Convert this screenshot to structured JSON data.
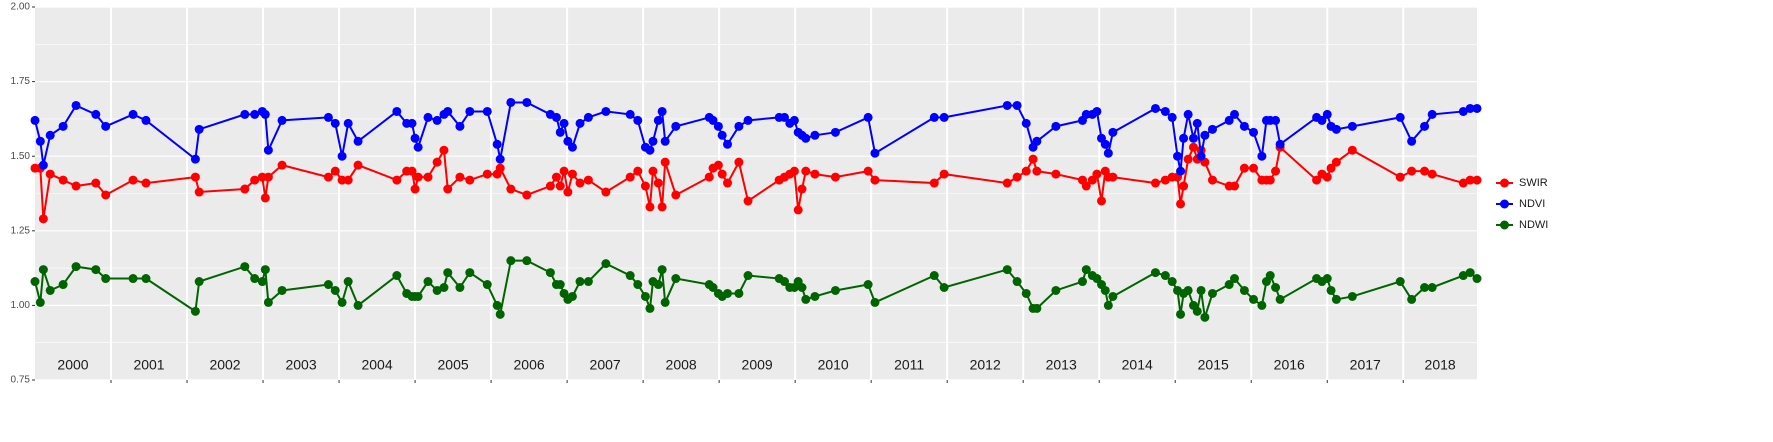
{
  "chart_data": {
    "type": "line",
    "x": [
      2000.0,
      2000.07,
      2000.11,
      2000.2,
      2000.37,
      2000.54,
      2000.8,
      2000.93,
      2001.29,
      2001.46,
      2002.11,
      2002.16,
      2002.76,
      2002.89,
      2002.99,
      2003.03,
      2003.07,
      2003.25,
      2003.86,
      2003.95,
      2004.04,
      2004.12,
      2004.25,
      2004.76,
      2004.89,
      2004.96,
      2005.0,
      2005.04,
      2005.17,
      2005.29,
      2005.38,
      2005.43,
      2005.59,
      2005.72,
      2005.95,
      2006.08,
      2006.12,
      2006.26,
      2006.47,
      2006.78,
      2006.86,
      2006.91,
      2006.96,
      2007.01,
      2007.07,
      2007.17,
      2007.28,
      2007.51,
      2007.83,
      2007.93,
      2008.03,
      2008.09,
      2008.13,
      2008.2,
      2008.25,
      2008.29,
      2008.43,
      2008.87,
      2008.92,
      2008.99,
      2009.04,
      2009.11,
      2009.26,
      2009.38,
      2009.79,
      2009.86,
      2009.93,
      2009.99,
      2010.04,
      2010.09,
      2010.14,
      2010.26,
      2010.53,
      2010.96,
      2011.05,
      2011.83,
      2011.96,
      2012.79,
      2012.92,
      2013.04,
      2013.13,
      2013.18,
      2013.43,
      2013.78,
      2013.83,
      2013.91,
      2013.97,
      2014.03,
      2014.08,
      2014.12,
      2014.18,
      2014.74,
      2014.87,
      2014.96,
      2015.03,
      2015.07,
      2015.11,
      2015.17,
      2015.24,
      2015.29,
      2015.34,
      2015.39,
      2015.49,
      2015.71,
      2015.78,
      2015.91,
      2016.03,
      2016.14,
      2016.2,
      2016.25,
      2016.32,
      2016.38,
      2016.86,
      2016.93,
      2017.0,
      2017.05,
      2017.12,
      2017.33,
      2017.96,
      2018.11,
      2018.28,
      2018.38,
      2018.79,
      2018.88,
      2018.97
    ],
    "series": [
      {
        "name": "SWIR",
        "color": "#ff0000",
        "values": [
          1.46,
          1.46,
          1.29,
          1.44,
          1.42,
          1.4,
          1.41,
          1.37,
          1.42,
          1.41,
          1.43,
          1.38,
          1.39,
          1.42,
          1.43,
          1.36,
          1.43,
          1.47,
          1.43,
          1.45,
          1.42,
          1.42,
          1.47,
          1.42,
          1.45,
          1.45,
          1.39,
          1.43,
          1.43,
          1.48,
          1.52,
          1.39,
          1.43,
          1.42,
          1.44,
          1.44,
          1.46,
          1.39,
          1.37,
          1.4,
          1.43,
          1.4,
          1.45,
          1.38,
          1.44,
          1.41,
          1.42,
          1.38,
          1.43,
          1.45,
          1.4,
          1.33,
          1.45,
          1.41,
          1.33,
          1.48,
          1.37,
          1.43,
          1.46,
          1.47,
          1.44,
          1.41,
          1.48,
          1.35,
          1.42,
          1.43,
          1.44,
          1.45,
          1.32,
          1.39,
          1.45,
          1.44,
          1.43,
          1.45,
          1.42,
          1.41,
          1.44,
          1.41,
          1.43,
          1.45,
          1.49,
          1.45,
          1.44,
          1.42,
          1.4,
          1.42,
          1.44,
          1.35,
          1.45,
          1.43,
          1.43,
          1.41,
          1.42,
          1.43,
          1.43,
          1.34,
          1.4,
          1.49,
          1.53,
          1.49,
          1.52,
          1.48,
          1.42,
          1.4,
          1.4,
          1.46,
          1.46,
          1.42,
          1.42,
          1.42,
          1.45,
          1.53,
          1.42,
          1.44,
          1.43,
          1.46,
          1.48,
          1.52,
          1.43,
          1.45,
          1.45,
          1.44,
          1.41,
          1.42,
          1.42
        ]
      },
      {
        "name": "NDVI",
        "color": "#0000ff",
        "values": [
          1.62,
          1.55,
          1.47,
          1.57,
          1.6,
          1.67,
          1.64,
          1.6,
          1.64,
          1.62,
          1.49,
          1.59,
          1.64,
          1.64,
          1.65,
          1.64,
          1.52,
          1.62,
          1.63,
          1.61,
          1.5,
          1.61,
          1.55,
          1.65,
          1.61,
          1.61,
          1.56,
          1.53,
          1.63,
          1.62,
          1.64,
          1.65,
          1.6,
          1.65,
          1.65,
          1.54,
          1.49,
          1.68,
          1.68,
          1.64,
          1.63,
          1.58,
          1.61,
          1.55,
          1.53,
          1.61,
          1.63,
          1.65,
          1.64,
          1.62,
          1.53,
          1.52,
          1.55,
          1.62,
          1.65,
          1.55,
          1.6,
          1.63,
          1.62,
          1.6,
          1.57,
          1.54,
          1.6,
          1.62,
          1.63,
          1.63,
          1.61,
          1.62,
          1.58,
          1.57,
          1.56,
          1.57,
          1.58,
          1.63,
          1.51,
          1.63,
          1.63,
          1.67,
          1.67,
          1.61,
          1.53,
          1.55,
          1.6,
          1.62,
          1.64,
          1.64,
          1.65,
          1.56,
          1.54,
          1.51,
          1.58,
          1.66,
          1.65,
          1.63,
          1.5,
          1.45,
          1.56,
          1.64,
          1.56,
          1.61,
          1.5,
          1.57,
          1.59,
          1.62,
          1.64,
          1.6,
          1.58,
          1.5,
          1.62,
          1.62,
          1.62,
          1.54,
          1.63,
          1.62,
          1.64,
          1.6,
          1.59,
          1.6,
          1.63,
          1.55,
          1.6,
          1.64,
          1.65,
          1.66,
          1.66
        ]
      },
      {
        "name": "NDWI",
        "color": "#006400",
        "values": [
          1.08,
          1.01,
          1.12,
          1.05,
          1.07,
          1.13,
          1.12,
          1.09,
          1.09,
          1.09,
          0.98,
          1.08,
          1.13,
          1.09,
          1.08,
          1.12,
          1.01,
          1.05,
          1.07,
          1.05,
          1.01,
          1.08,
          1.0,
          1.1,
          1.04,
          1.03,
          1.03,
          1.03,
          1.08,
          1.05,
          1.06,
          1.11,
          1.06,
          1.11,
          1.07,
          1.0,
          0.97,
          1.15,
          1.15,
          1.11,
          1.07,
          1.07,
          1.04,
          1.02,
          1.03,
          1.08,
          1.08,
          1.14,
          1.1,
          1.07,
          1.03,
          0.99,
          1.08,
          1.07,
          1.12,
          1.01,
          1.09,
          1.07,
          1.06,
          1.04,
          1.03,
          1.04,
          1.04,
          1.1,
          1.09,
          1.08,
          1.06,
          1.06,
          1.08,
          1.06,
          1.02,
          1.03,
          1.05,
          1.07,
          1.01,
          1.1,
          1.06,
          1.12,
          1.08,
          1.04,
          0.99,
          0.99,
          1.05,
          1.08,
          1.12,
          1.1,
          1.09,
          1.07,
          1.05,
          1.0,
          1.03,
          1.11,
          1.1,
          1.08,
          1.05,
          0.97,
          1.04,
          1.05,
          1.0,
          0.98,
          1.05,
          0.96,
          1.04,
          1.07,
          1.09,
          1.05,
          1.02,
          1.0,
          1.08,
          1.1,
          1.06,
          1.02,
          1.09,
          1.08,
          1.09,
          1.05,
          1.02,
          1.03,
          1.08,
          1.02,
          1.06,
          1.06,
          1.1,
          1.11,
          1.09
        ]
      }
    ],
    "xlim": [
      2000,
      2018.97
    ],
    "xticks": [
      2000,
      2001,
      2002,
      2003,
      2004,
      2005,
      2006,
      2007,
      2008,
      2009,
      2010,
      2011,
      2012,
      2013,
      2014,
      2015,
      2016,
      2017,
      2018
    ],
    "ylim": [
      0.75,
      2.0
    ],
    "yticks": [
      {
        "value": 0.75,
        "label": "0.75"
      },
      {
        "value": 1.0,
        "label": "1.00"
      },
      {
        "value": 1.25,
        "label": "1.25"
      },
      {
        "value": 1.5,
        "label": "1.50"
      },
      {
        "value": 1.75,
        "label": "1.75"
      },
      {
        "value": 2.0,
        "label": "2.00"
      }
    ],
    "grid": true,
    "legend": "right"
  }
}
